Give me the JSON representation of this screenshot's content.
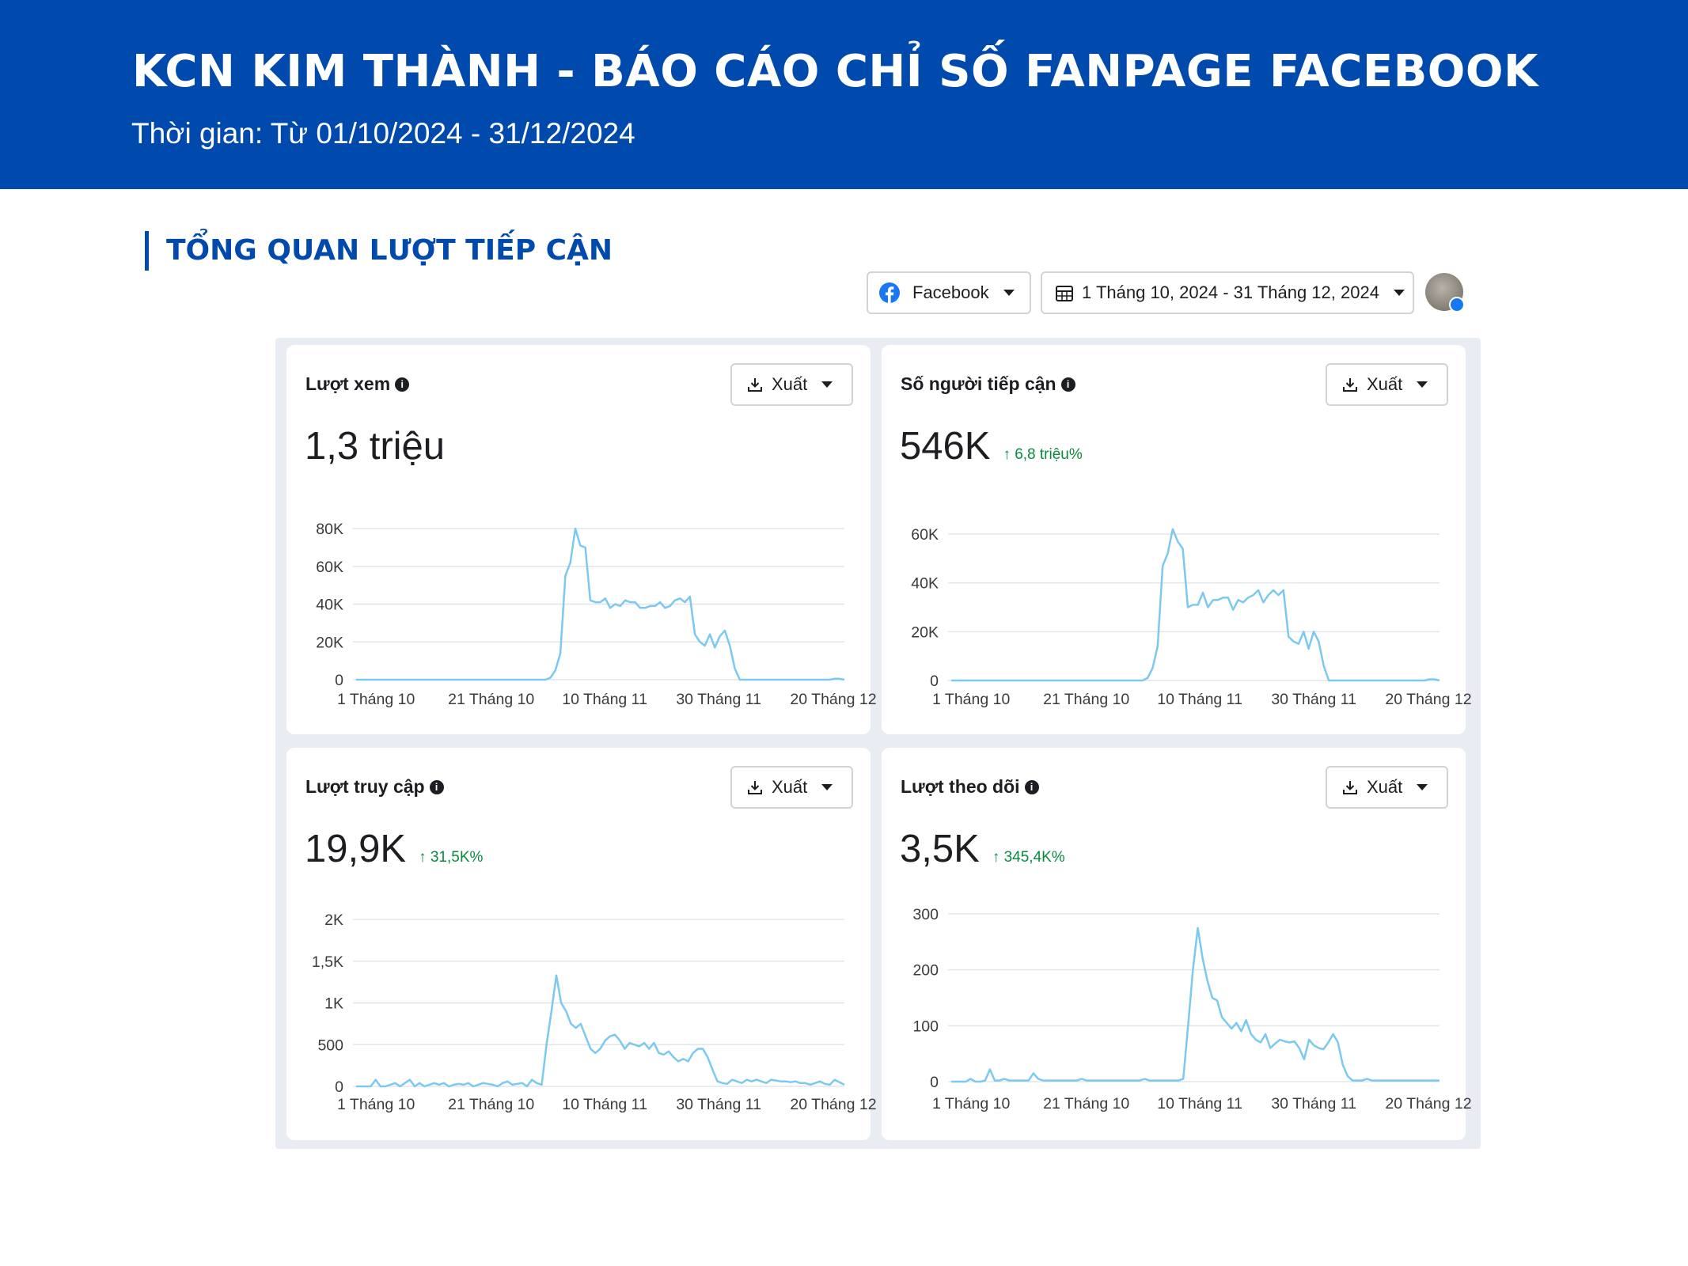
{
  "header": {
    "title": "KCN KIM THÀNH - BÁO CÁO CHỈ SỐ FANPAGE FACEBOOK",
    "subtitle": "Thời gian: Từ 01/10/2024 - 31/12/2024",
    "background": "#0049AD"
  },
  "section": {
    "title": "TỔNG QUAN LƯỢT TIẾP CẬN"
  },
  "toolbar": {
    "platform_label": "Facebook",
    "date_range_label": "1 Tháng 10, 2024 - 31 Tháng 12, 2024"
  },
  "colors": {
    "line": "#7cc9f0",
    "positive": "#0a8a3e",
    "grid": "#e3e5e8"
  },
  "cards": [
    {
      "title": "Lượt xem",
      "value": "1,3 triệu",
      "change": "",
      "export_label": "Xuất"
    },
    {
      "title": "Số người tiếp cận",
      "value": "546K",
      "change": "↑ 6,8 triệu%",
      "export_label": "Xuất"
    },
    {
      "title": "Lượt truy cập",
      "value": "19,9K",
      "change": "↑ 31,5K%",
      "export_label": "Xuất"
    },
    {
      "title": "Lượt theo dõi",
      "value": "3,5K",
      "change": "↑ 345,4K%",
      "export_label": "Xuất"
    }
  ],
  "chart_data": [
    {
      "type": "line",
      "title": "Lượt xem",
      "x_tick_labels": [
        "1 Tháng 10",
        "21 Tháng 10",
        "10 Tháng 11",
        "30 Tháng 11",
        "20 Tháng 12"
      ],
      "y_tick_labels": [
        "0",
        "20K",
        "40K",
        "60K",
        "80K"
      ],
      "ylim": [
        0,
        80000
      ],
      "grid": true,
      "values": [
        0,
        0,
        0,
        0,
        0,
        0,
        0,
        0,
        0,
        0,
        0,
        0,
        0,
        0,
        0,
        0,
        0,
        0,
        0,
        0,
        0,
        0,
        0,
        0,
        0,
        0,
        0,
        0,
        0,
        0,
        0,
        0,
        0,
        0,
        0,
        0,
        0,
        0,
        0,
        1000,
        5000,
        14000,
        55000,
        62000,
        80000,
        71000,
        70000,
        42000,
        41000,
        41000,
        43000,
        38000,
        40000,
        39000,
        42000,
        41000,
        41000,
        38000,
        38000,
        39000,
        39000,
        41000,
        38000,
        39000,
        42000,
        43000,
        41000,
        44000,
        24000,
        20000,
        18000,
        24000,
        17000,
        23000,
        26000,
        18000,
        6000,
        0,
        0,
        0,
        0,
        0,
        0,
        0,
        0,
        0,
        0,
        0,
        0,
        0,
        0,
        0,
        0,
        0,
        0,
        0,
        500,
        500,
        0
      ]
    },
    {
      "type": "line",
      "title": "Số người tiếp cận",
      "x_tick_labels": [
        "1 Tháng 10",
        "21 Tháng 10",
        "10 Tháng 11",
        "30 Tháng 11",
        "20 Tháng 12"
      ],
      "y_tick_labels": [
        "0",
        "20K",
        "40K",
        "60K"
      ],
      "ylim": [
        0,
        60000
      ],
      "grid": true,
      "values": [
        0,
        0,
        0,
        0,
        0,
        0,
        0,
        0,
        0,
        0,
        0,
        0,
        0,
        0,
        0,
        0,
        0,
        0,
        0,
        0,
        0,
        0,
        0,
        0,
        0,
        0,
        0,
        0,
        0,
        0,
        0,
        0,
        0,
        0,
        0,
        0,
        0,
        0,
        0,
        1000,
        5000,
        14000,
        47000,
        52000,
        62000,
        57000,
        54000,
        30000,
        31000,
        31000,
        36000,
        30000,
        33000,
        33000,
        34000,
        34000,
        29000,
        33000,
        32000,
        34000,
        35000,
        37000,
        32000,
        35000,
        37000,
        35000,
        37000,
        18000,
        16000,
        15000,
        20000,
        13000,
        20000,
        16000,
        6000,
        0,
        0,
        0,
        0,
        0,
        0,
        0,
        0,
        0,
        0,
        0,
        0,
        0,
        0,
        0,
        0,
        0,
        0,
        0,
        0,
        500,
        500,
        0
      ]
    },
    {
      "type": "line",
      "title": "Lượt truy cập",
      "x_tick_labels": [
        "1 Tháng 10",
        "21 Tháng 10",
        "10 Tháng 11",
        "30 Tháng 11",
        "20 Tháng 12"
      ],
      "y_tick_labels": [
        "0",
        "500",
        "1K",
        "1,5K",
        "2K"
      ],
      "ylim": [
        0,
        2000
      ],
      "grid": true,
      "values": [
        0,
        0,
        0,
        0,
        80,
        0,
        0,
        20,
        40,
        0,
        40,
        80,
        0,
        40,
        0,
        20,
        40,
        20,
        40,
        0,
        20,
        30,
        20,
        40,
        0,
        20,
        40,
        30,
        20,
        0,
        40,
        60,
        20,
        30,
        40,
        0,
        80,
        40,
        20,
        500,
        900,
        1330,
        1000,
        900,
        750,
        700,
        750,
        600,
        450,
        400,
        450,
        550,
        600,
        620,
        550,
        450,
        520,
        500,
        480,
        520,
        450,
        520,
        400,
        380,
        420,
        350,
        300,
        330,
        300,
        400,
        450,
        450,
        350,
        200,
        60,
        40,
        30,
        80,
        60,
        40,
        80,
        60,
        80,
        60,
        40,
        80,
        70,
        60,
        60,
        50,
        60,
        40,
        40,
        20,
        40,
        60,
        30,
        20,
        80,
        50,
        20
      ]
    },
    {
      "type": "line",
      "title": "Lượt theo dõi",
      "x_tick_labels": [
        "1 Tháng 10",
        "21 Tháng 10",
        "10 Tháng 11",
        "30 Tháng 11",
        "20 Tháng 12"
      ],
      "y_tick_labels": [
        "0",
        "100",
        "200",
        "300"
      ],
      "ylim": [
        0,
        300
      ],
      "grid": true,
      "values": [
        0,
        0,
        0,
        0,
        5,
        0,
        0,
        2,
        22,
        2,
        2,
        5,
        2,
        2,
        2,
        2,
        2,
        15,
        5,
        2,
        2,
        2,
        2,
        2,
        2,
        2,
        2,
        5,
        2,
        2,
        2,
        2,
        2,
        2,
        2,
        2,
        2,
        2,
        2,
        2,
        5,
        2,
        2,
        2,
        2,
        2,
        2,
        2,
        5,
        100,
        200,
        275,
        220,
        180,
        150,
        145,
        115,
        105,
        95,
        105,
        90,
        110,
        85,
        75,
        70,
        85,
        60,
        68,
        75,
        72,
        70,
        72,
        60,
        40,
        75,
        65,
        60,
        58,
        70,
        85,
        70,
        30,
        10,
        2,
        2,
        2,
        5,
        2,
        2,
        2,
        2,
        2,
        2,
        2,
        2,
        2,
        2,
        2,
        2,
        2,
        2,
        2
      ]
    }
  ]
}
